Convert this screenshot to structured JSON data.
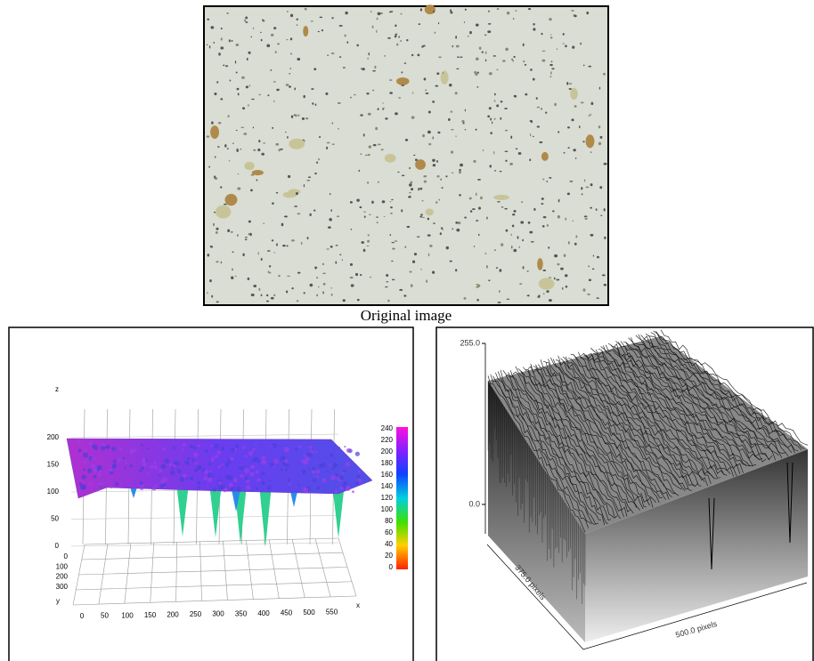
{
  "image": {
    "caption": "Original image"
  },
  "left_plot": {
    "z_label": "z",
    "z_ticks": [
      "200",
      "150",
      "100",
      "50",
      "0"
    ],
    "y_label": "y",
    "y_ticks": [
      "0",
      "100",
      "200",
      "300"
    ],
    "x_label": "x",
    "x_ticks": [
      "0",
      "50",
      "100",
      "150",
      "200",
      "250",
      "300",
      "350",
      "400",
      "450",
      "500",
      "550"
    ],
    "colorbar_ticks": [
      "240",
      "220",
      "200",
      "180",
      "160",
      "140",
      "120",
      "100",
      "80",
      "60",
      "40",
      "20",
      "0"
    ]
  },
  "right_plot": {
    "z_ticks": [
      "255.0",
      "0.0"
    ],
    "y_axis_label": "375.0 pixels",
    "x_axis_label": "500.0 pixels"
  }
}
